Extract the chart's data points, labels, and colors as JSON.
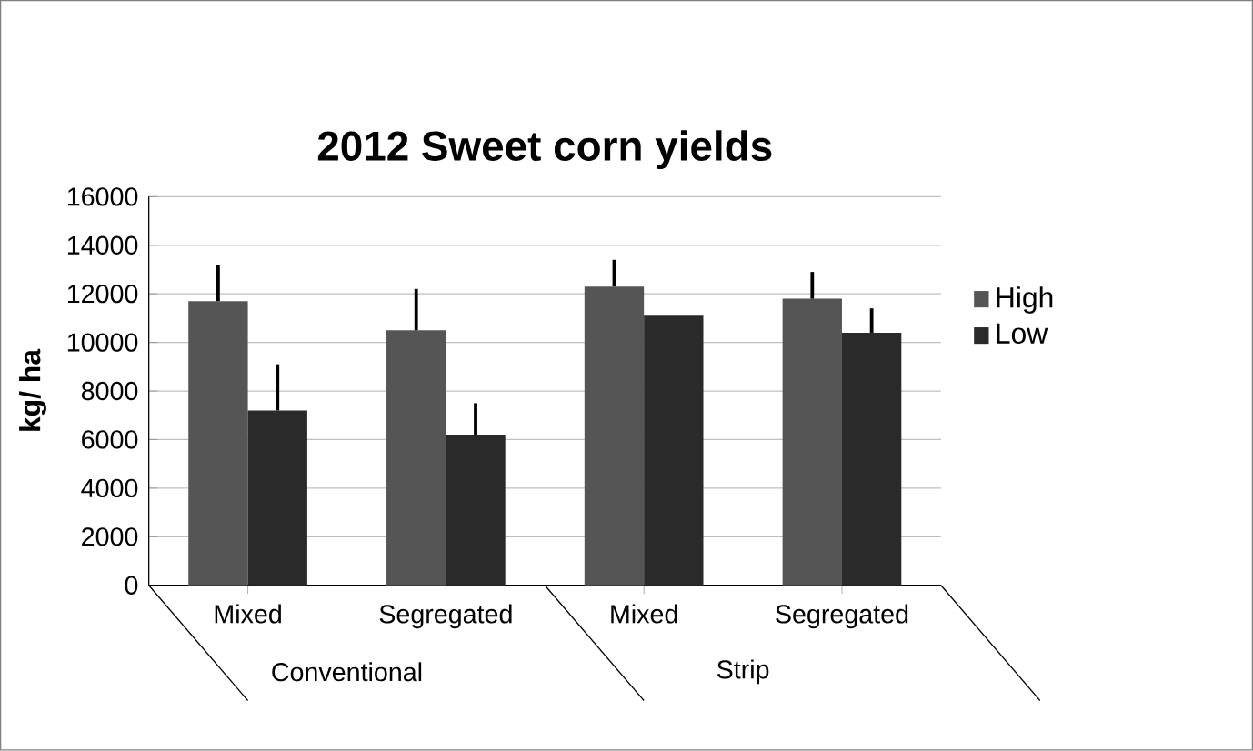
{
  "chart_data": {
    "type": "bar",
    "title": "2012 Sweet corn yields",
    "ylabel": "kg/ ha",
    "categories": [
      "Mixed",
      "Segregated",
      "Mixed",
      "Segregated"
    ],
    "series": [
      {
        "name": "High",
        "color": "#555555",
        "values": [
          11700,
          10500,
          12300,
          11800
        ],
        "errors": [
          1500,
          1700,
          1100,
          1100
        ]
      },
      {
        "name": "Low",
        "color": "#2a2a2a",
        "values": [
          7200,
          6200,
          11100,
          10400
        ],
        "errors": [
          1900,
          1300,
          null,
          1000
        ]
      }
    ],
    "annotations": [
      "Conventional",
      "Strip"
    ],
    "ylim": [
      0,
      16000
    ],
    "yticks": [
      0,
      2000,
      4000,
      6000,
      8000,
      10000,
      12000,
      14000,
      16000
    ],
    "grid": "y",
    "legend": "right"
  }
}
